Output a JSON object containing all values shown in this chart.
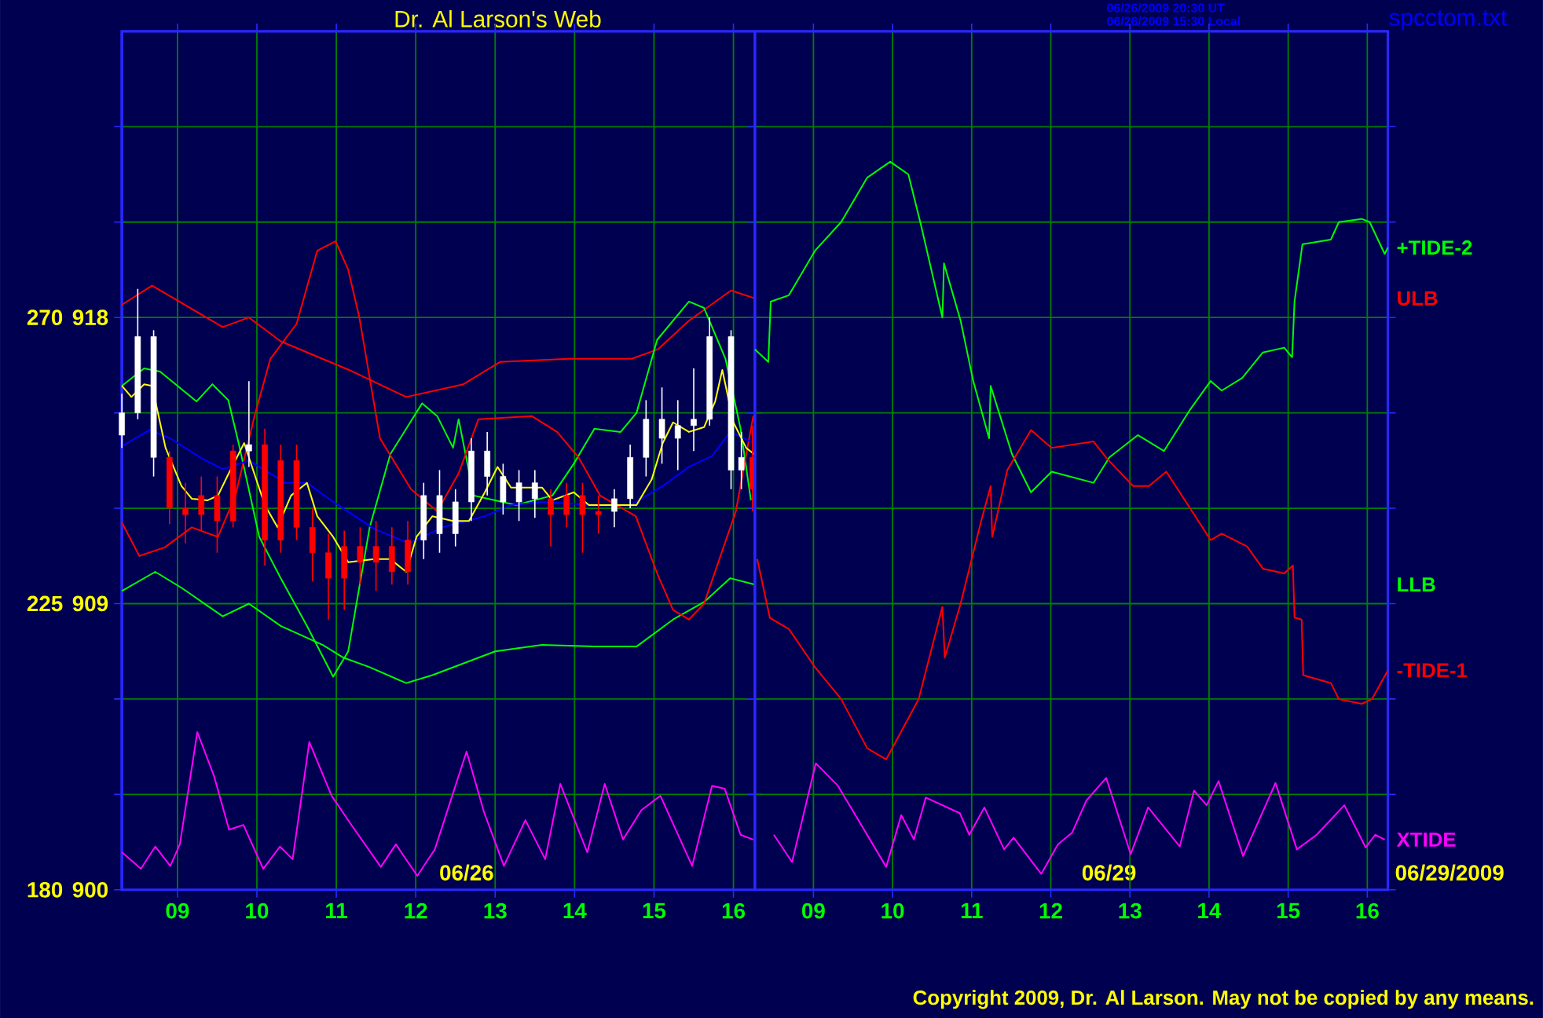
{
  "chart_data": [
    {
      "type": "line",
      "title": "Dr. Al Larson's Web",
      "annotations": [
        "06/26/2009 20:30 UT",
        "06/26/2009 15:30 Local",
        "spcctom.txt",
        "Copyright 2009, Dr. Al Larson. May not be copied by any means.",
        "06/26"
      ],
      "xlim": [
        8.3,
        16.27
      ],
      "xticks": [
        {
          "value": 9,
          "label": "09"
        },
        10,
        11,
        12,
        13,
        14,
        15,
        16
      ],
      "ylim": [
        900,
        927
      ],
      "yticks": [
        900,
        {
          "value": 903,
          "label": null
        },
        {
          "value": 906,
          "label": null
        },
        909,
        {
          "value": 912,
          "label": null
        },
        {
          "value": 915,
          "label": null
        },
        918,
        {
          "value": 921,
          "label": null
        },
        {
          "value": 924,
          "label": null
        }
      ],
      "y2lim": [
        180,
        315
      ],
      "y2ticks": [
        180,
        225,
        270
      ],
      "grid": true,
      "series": [
        {
          "name": "ULB",
          "color": "#ff0000",
          "x": [
            8.3,
            8.68,
            9.57,
            9.9,
            10.3,
            11.16,
            11.88,
            12.6,
            13.06,
            13.93,
            14.72,
            15.05,
            15.44,
            15.97,
            16.27
          ],
          "values": [
            918.4,
            919.0,
            917.7,
            918.0,
            917.25,
            916.35,
            915.5,
            915.9,
            916.6,
            916.7,
            916.7,
            917.0,
            917.9,
            918.85,
            918.6
          ]
        },
        {
          "name": "LLB",
          "color": "#00ff00",
          "x": [
            8.3,
            8.72,
            9.05,
            9.57,
            9.9,
            10.3,
            10.83,
            11.09,
            11.42,
            11.88,
            12.21,
            13.0,
            13.59,
            14.25,
            14.78,
            15.24,
            15.63,
            15.96,
            16.27
          ],
          "values": [
            909.4,
            910.0,
            909.5,
            908.6,
            909.0,
            908.3,
            907.7,
            907.3,
            907.0,
            906.5,
            906.75,
            907.5,
            907.7,
            907.65,
            907.65,
            908.5,
            909.05,
            909.8,
            909.6
          ]
        },
        {
          "color": "#00ff00",
          "x": [
            8.3,
            8.58,
            8.78,
            9.24,
            9.44,
            9.64,
            9.77,
            10.03,
            10.3,
            10.63,
            10.96,
            11.15,
            11.42,
            11.68,
            12.08,
            12.27,
            12.47,
            12.54,
            12.73,
            13.0,
            13.26,
            13.72,
            13.99,
            14.25,
            14.58,
            14.78,
            15.04,
            15.44,
            15.63,
            15.9,
            16.09,
            16.22
          ],
          "values": [
            915.85,
            916.4,
            916.3,
            915.36,
            915.9,
            915.4,
            914.05,
            911.1,
            909.8,
            908.3,
            906.7,
            907.5,
            911.4,
            913.7,
            915.3,
            914.9,
            913.9,
            914.8,
            912.4,
            912.25,
            912.1,
            912.4,
            913.4,
            914.5,
            914.4,
            915.0,
            917.3,
            918.5,
            918.3,
            916.7,
            914.5,
            912.25
          ]
        },
        {
          "color": "#ff0000",
          "x": [
            8.3,
            8.52,
            8.84,
            9.18,
            9.51,
            9.73,
            9.97,
            10.17,
            10.5,
            10.76,
            10.99,
            11.15,
            11.29,
            11.55,
            11.94,
            12.27,
            12.54,
            12.79,
            13.46,
            13.78,
            14.05,
            14.32,
            14.77,
            15.04,
            15.24,
            15.44,
            15.63,
            16.03,
            16.25
          ],
          "values": [
            911.55,
            910.5,
            910.77,
            911.4,
            911.1,
            912.4,
            914.9,
            916.7,
            917.8,
            920.1,
            920.4,
            919.5,
            918.0,
            914.2,
            912.6,
            911.9,
            913.1,
            914.8,
            914.9,
            914.4,
            913.6,
            912.4,
            911.75,
            909.95,
            908.8,
            908.5,
            909.0,
            911.9,
            914.9
          ]
        },
        {
          "color": "#ff00ff",
          "x": [
            8.3,
            8.54,
            8.72,
            8.91,
            9.03,
            9.25,
            9.46,
            9.65,
            9.83,
            10.08,
            10.29,
            10.45,
            10.66,
            10.94,
            11.19,
            11.56,
            11.75,
            12.02,
            12.24,
            12.64,
            12.86,
            13.11,
            13.38,
            13.63,
            13.82,
            14.16,
            14.38,
            14.61,
            14.84,
            15.08,
            15.48,
            15.73,
            15.89,
            16.09,
            16.25
          ],
          "values": [
            901.18,
            900.66,
            901.36,
            900.75,
            901.43,
            904.96,
            903.58,
            901.89,
            902.04,
            900.66,
            901.36,
            900.96,
            904.65,
            902.96,
            902.04,
            900.72,
            901.43,
            900.44,
            901.27,
            904.35,
            902.44,
            900.75,
            902.19,
            900.96,
            903.33,
            901.18,
            903.33,
            901.58,
            902.5,
            902.96,
            900.75,
            903.27,
            903.18,
            901.73,
            901.58
          ]
        },
        {
          "color": "#0000ff",
          "x": [
            8.3,
            8.65,
            8.91,
            9.31,
            9.57,
            9.9,
            10.36,
            10.63,
            10.96,
            11.48,
            11.91,
            12.34,
            12.87,
            13.2,
            13.59,
            14.25,
            14.71,
            15.11,
            15.44,
            15.73,
            15.96,
            16.26
          ],
          "values": [
            913.95,
            914.46,
            914.2,
            913.56,
            913.23,
            913.5,
            912.8,
            912.8,
            912.2,
            911.35,
            910.9,
            911.4,
            911.75,
            912.1,
            912.2,
            912.1,
            912.1,
            912.7,
            913.3,
            913.64,
            914.4,
            914.05
          ]
        },
        {
          "color": "#ffff00",
          "x": [
            8.3,
            8.42,
            8.58,
            8.68,
            8.85,
            9.05,
            9.18,
            9.38,
            9.51,
            9.64,
            9.84,
            9.97,
            10.1,
            10.26,
            10.43,
            10.63,
            10.76,
            10.96,
            11.15,
            11.48,
            11.68,
            11.88,
            12.01,
            12.21,
            12.47,
            12.67,
            12.87,
            13.03,
            13.2,
            13.39,
            13.59,
            13.72,
            13.99,
            14.18,
            14.58,
            14.78,
            14.97,
            15.11,
            15.24,
            15.44,
            15.63,
            15.77,
            15.86,
            16.0,
            16.16,
            16.26
          ],
          "values": [
            915.85,
            915.5,
            915.9,
            915.85,
            913.9,
            912.7,
            912.3,
            912.25,
            912.4,
            913.07,
            914.05,
            913.07,
            912.1,
            911.4,
            912.4,
            912.8,
            911.75,
            911.1,
            910.3,
            910.4,
            910.4,
            910.0,
            911.1,
            911.75,
            911.6,
            911.6,
            912.5,
            913.3,
            912.65,
            912.65,
            912.65,
            912.25,
            912.5,
            912.1,
            912.1,
            912.1,
            912.9,
            914.05,
            914.7,
            914.4,
            914.55,
            915.36,
            916.35,
            914.7,
            913.9,
            913.7
          ]
        },
        {
          "type": "candlestick",
          "x": [
            8.3,
            8.5,
            8.7,
            8.9,
            9.1,
            9.3,
            9.5,
            9.7,
            9.9,
            10.1,
            10.3,
            10.5,
            10.7,
            10.9,
            11.1,
            11.3,
            11.5,
            11.7,
            11.9,
            12.1,
            12.3,
            12.5,
            12.7,
            12.9,
            13.1,
            13.3,
            13.5,
            13.7,
            13.9,
            14.1,
            14.3,
            14.5,
            14.7,
            14.9,
            15.1,
            15.3,
            15.5,
            15.7,
            15.97,
            16.1,
            16.24
          ],
          "ohlc": [
            [
              914.3,
              915.6,
              913.9,
              915.0
            ],
            [
              915.0,
              918.9,
              914.8,
              917.4
            ],
            [
              913.6,
              917.6,
              913.0,
              917.4
            ],
            [
              913.6,
              913.8,
              911.5,
              912.0
            ],
            [
              912.0,
              912.8,
              910.9,
              911.8
            ],
            [
              912.4,
              913.0,
              911.3,
              911.8
            ],
            [
              912.4,
              913.0,
              910.6,
              911.6
            ],
            [
              913.8,
              914.0,
              911.4,
              911.6
            ],
            [
              913.8,
              916.0,
              913.3,
              914.0
            ],
            [
              914.0,
              914.5,
              910.2,
              911.0
            ],
            [
              913.5,
              914.0,
              910.6,
              911.0
            ],
            [
              913.5,
              914.0,
              911.0,
              911.4
            ],
            [
              911.4,
              912.0,
              909.7,
              910.6
            ],
            [
              910.6,
              911.2,
              908.5,
              909.8
            ],
            [
              910.8,
              911.3,
              908.8,
              909.8
            ],
            [
              910.8,
              911.4,
              909.6,
              910.3
            ],
            [
              910.8,
              911.6,
              909.4,
              910.3
            ],
            [
              910.8,
              911.4,
              909.6,
              910.0
            ],
            [
              911.0,
              911.6,
              909.6,
              910.0
            ],
            [
              911.0,
              912.8,
              910.4,
              912.4
            ],
            [
              911.2,
              913.2,
              910.6,
              912.4
            ],
            [
              911.2,
              912.6,
              910.8,
              912.2
            ],
            [
              912.2,
              914.2,
              911.6,
              913.8
            ],
            [
              913.0,
              914.4,
              912.4,
              913.8
            ],
            [
              912.2,
              913.4,
              911.8,
              913.0
            ],
            [
              912.2,
              913.2,
              911.6,
              912.8
            ],
            [
              912.3,
              913.2,
              911.7,
              912.8
            ],
            [
              912.3,
              912.6,
              910.8,
              911.8
            ],
            [
              912.4,
              912.8,
              911.4,
              911.8
            ],
            [
              912.4,
              912.8,
              910.6,
              911.8
            ],
            [
              911.9,
              912.4,
              911.2,
              911.8
            ],
            [
              911.9,
              912.6,
              911.4,
              912.3
            ],
            [
              912.3,
              914.0,
              912.0,
              913.6
            ],
            [
              913.6,
              915.4,
              913.0,
              914.8
            ],
            [
              914.2,
              915.8,
              913.4,
              914.8
            ],
            [
              914.2,
              915.4,
              913.2,
              914.6
            ],
            [
              914.6,
              916.4,
              913.8,
              914.8
            ],
            [
              914.8,
              918.0,
              914.6,
              917.4
            ],
            [
              913.2,
              917.6,
              912.6,
              917.4
            ],
            [
              913.2,
              914.4,
              912.6,
              913.6
            ],
            [
              913.6,
              914.6,
              911.9,
              912.6
            ]
          ],
          "colors": [
            "#ffffff",
            "#ffffff",
            "#ffffff",
            "#ff0000",
            "#ff0000",
            "#ff0000",
            "#ff0000",
            "#ff0000",
            "#ffffff",
            "#ff0000",
            "#ff0000",
            "#ff0000",
            "#ff0000",
            "#ff0000",
            "#ff0000",
            "#ff0000",
            "#ff0000",
            "#ff0000",
            "#ff0000",
            "#ffffff",
            "#ffffff",
            "#ffffff",
            "#ffffff",
            "#ffffff",
            "#ffffff",
            "#ffffff",
            "#ffffff",
            "#ff0000",
            "#ff0000",
            "#ff0000",
            "#ff0000",
            "#ffffff",
            "#ffffff",
            "#ffffff",
            "#ffffff",
            "#ffffff",
            "#ffffff",
            "#ffffff",
            "#ffffff",
            "#ffffff",
            "#ff0000"
          ]
        }
      ]
    },
    {
      "type": "line",
      "annotations": [
        "06/29",
        "06/29/2009"
      ],
      "xlim": [
        8.26,
        16.26
      ],
      "xticks": [
        {
          "value": 9,
          "label": "09"
        },
        10,
        11,
        12,
        13,
        14,
        15,
        16
      ],
      "ylim": [
        900,
        927
      ],
      "yticks": [
        900,
        903,
        906,
        909,
        912,
        915,
        918,
        921,
        924
      ],
      "tick_labels": "x",
      "grid": true,
      "series": [
        {
          "name": "+TIDE-2",
          "color": "#00ff00",
          "x": [
            8.26,
            8.43,
            8.46,
            8.69,
            9.02,
            9.35,
            9.68,
            9.97,
            10.2,
            10.36,
            10.63,
            10.65,
            10.86,
            11.02,
            11.22,
            11.24,
            11.51,
            11.75,
            12.01,
            12.54,
            12.74,
            13.1,
            13.43,
            13.76,
            14.02,
            14.16,
            14.42,
            14.68,
            14.95,
            15.05,
            15.08,
            15.18,
            15.54,
            15.64,
            15.93,
            16.03,
            16.22,
            16.26
          ],
          "values": [
            917.0,
            916.6,
            918.5,
            918.7,
            920.1,
            921.0,
            922.4,
            922.9,
            922.5,
            920.9,
            918.0,
            919.7,
            917.9,
            916.0,
            914.2,
            915.85,
            913.7,
            912.5,
            913.15,
            912.8,
            913.6,
            914.3,
            913.8,
            915.1,
            916.0,
            915.7,
            916.1,
            916.9,
            917.05,
            916.75,
            918.5,
            920.3,
            920.45,
            921.0,
            921.1,
            921.0,
            920.0,
            920.2
          ]
        },
        {
          "name": "-TIDE-1",
          "color": "#ff0000",
          "x": [
            8.29,
            8.45,
            8.69,
            9.02,
            9.35,
            9.68,
            9.92,
            10.33,
            10.63,
            10.66,
            10.86,
            11.12,
            11.24,
            11.26,
            11.45,
            11.75,
            12.01,
            12.54,
            12.71,
            13.04,
            13.24,
            13.46,
            13.76,
            14.02,
            14.16,
            14.48,
            14.68,
            14.95,
            15.06,
            15.08,
            15.17,
            15.19,
            15.54,
            15.64,
            15.93,
            16.06,
            16.26
          ],
          "values": [
            910.4,
            908.55,
            908.2,
            907.0,
            906.0,
            904.45,
            904.1,
            906.0,
            908.9,
            907.3,
            909.0,
            911.6,
            912.7,
            911.1,
            913.2,
            914.46,
            913.9,
            914.1,
            913.56,
            912.7,
            912.7,
            913.15,
            912.0,
            911.0,
            911.2,
            910.8,
            910.1,
            909.95,
            910.2,
            908.56,
            908.5,
            906.75,
            906.5,
            906.0,
            905.85,
            906.0,
            906.9
          ]
        },
        {
          "name": "XTIDE",
          "color": "#ff00ff",
          "x": [
            8.5,
            8.73,
            9.03,
            9.31,
            9.92,
            10.11,
            10.27,
            10.42,
            10.85,
            10.97,
            11.16,
            11.41,
            11.53,
            11.88,
            12.09,
            12.27,
            12.45,
            12.7,
            13.01,
            13.23,
            13.63,
            13.81,
            13.97,
            14.12,
            14.43,
            14.84,
            15.11,
            15.36,
            15.71,
            15.98,
            16.1,
            16.22
          ],
          "values": [
            901.73,
            900.87,
            903.98,
            903.27,
            900.72,
            902.35,
            901.58,
            902.9,
            902.41,
            901.73,
            902.59,
            901.27,
            901.64,
            900.5,
            901.43,
            901.8,
            902.81,
            903.52,
            901.12,
            902.59,
            901.36,
            903.12,
            902.66,
            903.42,
            901.06,
            903.36,
            901.27,
            901.73,
            902.66,
            901.33,
            901.73,
            901.58
          ]
        }
      ]
    }
  ]
}
